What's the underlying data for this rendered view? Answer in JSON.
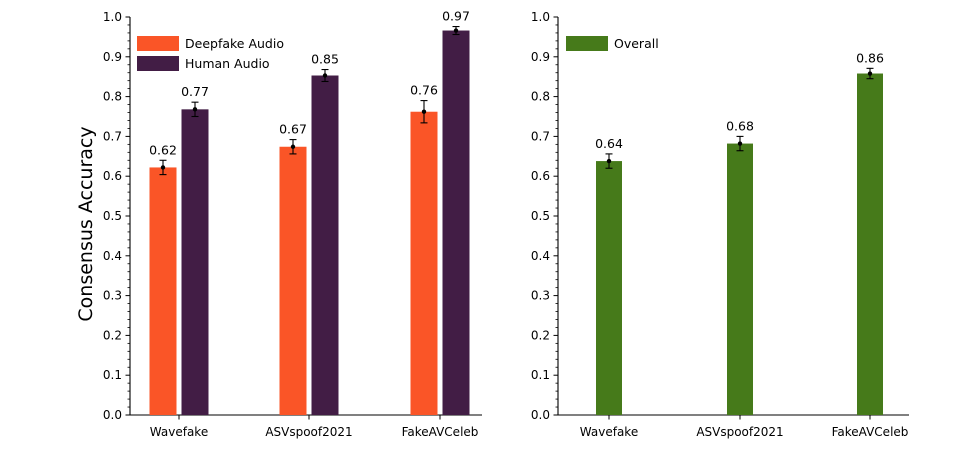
{
  "chart_data": [
    {
      "type": "bar",
      "ylabel": "Consensus Accuracy",
      "ylim": [
        0,
        1.0
      ],
      "yticks": [
        "0.0",
        "0.1",
        "0.2",
        "0.3",
        "0.4",
        "0.5",
        "0.6",
        "0.7",
        "0.8",
        "0.9",
        "1.0"
      ],
      "categories": [
        "Wavefake",
        "ASVspoof2021",
        "FakeAVCeleb"
      ],
      "legend_position": "top-left",
      "grid": false,
      "series": [
        {
          "name": "Deepfake Audio",
          "color": "#fa5527",
          "values": [
            0.622,
            0.674,
            0.762
          ],
          "labels": [
            "0.62",
            "0.67",
            "0.76"
          ],
          "errors": [
            0.018,
            0.018,
            0.028
          ]
        },
        {
          "name": "Human Audio",
          "color": "#421d45",
          "values": [
            0.768,
            0.853,
            0.966
          ],
          "labels": [
            "0.77",
            "0.85",
            "0.97"
          ],
          "errors": [
            0.018,
            0.015,
            0.01
          ]
        }
      ]
    },
    {
      "type": "bar",
      "ylabel": "",
      "ylim": [
        0,
        1.0
      ],
      "yticks": [
        "0.0",
        "0.1",
        "0.2",
        "0.3",
        "0.4",
        "0.5",
        "0.6",
        "0.7",
        "0.8",
        "0.9",
        "1.0"
      ],
      "categories": [
        "Wavefake",
        "ASVspoof2021",
        "FakeAVCeleb"
      ],
      "legend_position": "top-left",
      "grid": false,
      "series": [
        {
          "name": "Overall",
          "color": "#467a1a",
          "values": [
            0.638,
            0.682,
            0.858
          ],
          "labels": [
            "0.64",
            "0.68",
            "0.86"
          ],
          "errors": [
            0.018,
            0.018,
            0.013
          ]
        }
      ]
    }
  ]
}
